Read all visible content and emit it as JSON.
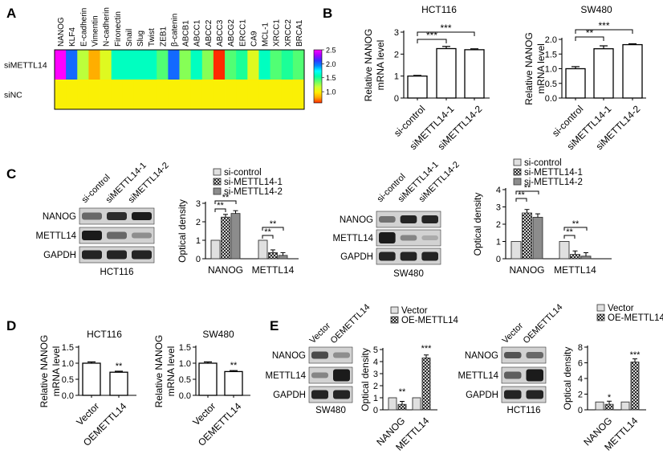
{
  "panel_labels": {
    "a": "A",
    "b": "B",
    "c": "C",
    "d": "D",
    "e": "E"
  },
  "colors": {
    "heat_scale": [
      "#ff2a00",
      "#ffaa00",
      "#ffee00",
      "#ccff33",
      "#66ff66",
      "#00ffaa",
      "#00ffff",
      "#0088ff",
      "#3333ff",
      "#aa00ff",
      "#ff00ff"
    ],
    "bar_white": "#ffffff",
    "bar_light": "#e0e0e0",
    "bar_gray": "#8c8c8c",
    "blot_dark": "#1a1a1a"
  },
  "panel_a": {
    "genes": [
      "NANOG",
      "KLF4",
      "E-cadherin",
      "Vimentin",
      "N-cadherin",
      "Fironectin",
      "Snail",
      "Slug",
      "Twist",
      "ZEB1",
      "β-catenin",
      "ABCB1",
      "ABCC1",
      "ABCC2",
      "ABCC3",
      "ABCG2",
      "ERCC1",
      "CA9",
      "MCL-1",
      "XRCC1",
      "XRCC2",
      "BRCA1"
    ],
    "rows": [
      "siMETTL14",
      "siNC"
    ],
    "colorbar_ticks": [
      "2.5",
      "2.0",
      "1.5",
      "1.0"
    ],
    "chart_data": {
      "type": "heatmap",
      "rows": [
        "siMETTL14",
        "siNC"
      ],
      "columns": [
        "NANOG",
        "KLF4",
        "E-cadherin",
        "Vimentin",
        "N-cadherin",
        "Fironectin",
        "Snail",
        "Slug",
        "Twist",
        "ZEB1",
        "β-catenin",
        "ABCB1",
        "ABCC1",
        "ABCC2",
        "ABCC3",
        "ABCG2",
        "ERCC1",
        "CA9",
        "MCL-1",
        "XRCC1",
        "XRCC2",
        "BRCA1"
      ],
      "values": [
        [
          2.5,
          2.0,
          1.2,
          0.8,
          1.1,
          1.6,
          1.6,
          1.6,
          1.6,
          1.4,
          2.0,
          1.3,
          1.6,
          1.3,
          0.6,
          1.4,
          1.5,
          1.1,
          1.6,
          1.4,
          1.5,
          1.4
        ],
        [
          1.0,
          1.0,
          1.0,
          1.0,
          1.0,
          1.0,
          1.0,
          1.0,
          1.0,
          1.0,
          1.0,
          1.0,
          1.0,
          1.0,
          1.0,
          1.0,
          1.0,
          1.0,
          1.0,
          1.0,
          1.0,
          1.0
        ]
      ],
      "range": [
        0.6,
        2.5
      ]
    }
  },
  "panel_b": {
    "chart_data": [
      {
        "type": "bar",
        "title": "HCT116",
        "ylabel": "Relative NANOG mRNA level",
        "categories": [
          "si-control",
          "siMETTL14-1",
          "siMETTL14-2"
        ],
        "values": [
          1.0,
          2.25,
          2.2
        ],
        "errors": [
          0.03,
          0.1,
          0.04
        ],
        "ylim": [
          0,
          3
        ],
        "yticks": [
          "0",
          "1",
          "2",
          "3"
        ],
        "significance": [
          "***",
          "***"
        ]
      },
      {
        "type": "bar",
        "title": "SW480",
        "ylabel": "Relative NANOG mRNA level",
        "categories": [
          "si-control",
          "siMETTL14-1",
          "siMETTL14-2"
        ],
        "values": [
          1.0,
          1.68,
          1.82
        ],
        "errors": [
          0.07,
          0.1,
          0.03
        ],
        "ylim": [
          0,
          2
        ],
        "yticks": [
          "0.0",
          "0.5",
          "1.0",
          "1.5",
          "2.0"
        ],
        "significance": [
          "**",
          "***"
        ]
      }
    ]
  },
  "panel_c": {
    "blots": [
      {
        "cell_line": "HCT116",
        "lanes": [
          "si-control",
          "siMETTL14-1",
          "siMETTL14-2"
        ],
        "rows": [
          "NANOG",
          "METTL14",
          "GAPDH"
        ]
      },
      {
        "cell_line": "SW480",
        "lanes": [
          "si-control",
          "siMETTL14-1",
          "siMETTL14-2"
        ],
        "rows": [
          "NANOG",
          "METTL14",
          "GAPDH"
        ]
      }
    ],
    "chart_data": [
      {
        "type": "bar",
        "ylabel": "Optical density",
        "categories": [
          "NANOG",
          "METTL14"
        ],
        "series": [
          {
            "name": "si-control",
            "values": [
              1.0,
              1.0
            ]
          },
          {
            "name": "si-METTL14-1",
            "values": [
              2.25,
              0.33
            ]
          },
          {
            "name": "si-METTL14-2",
            "values": [
              2.45,
              0.18
            ]
          }
        ],
        "ylim": [
          0,
          3
        ],
        "yticks": [
          "0",
          "1",
          "2",
          "3"
        ],
        "significance": [
          "**",
          "**",
          "**",
          "**"
        ]
      },
      {
        "type": "bar",
        "ylabel": "Optical density",
        "categories": [
          "NANOG",
          "METTL14"
        ],
        "series": [
          {
            "name": "si-control",
            "values": [
              1.0,
              1.0
            ]
          },
          {
            "name": "si-METTL14-1",
            "values": [
              2.65,
              0.25
            ]
          },
          {
            "name": "si-METTL14-2",
            "values": [
              2.4,
              0.15
            ]
          }
        ],
        "ylim": [
          0,
          4
        ],
        "yticks": [
          "0",
          "1",
          "2",
          "3",
          "4"
        ],
        "significance": [
          "**",
          "**",
          "**",
          "**"
        ]
      }
    ]
  },
  "panel_d": {
    "chart_data": [
      {
        "type": "bar",
        "title": "HCT116",
        "ylabel": "Relative NANOG mRNA level",
        "categories": [
          "Vector",
          "OEMETTL14"
        ],
        "values": [
          1.0,
          0.72
        ],
        "errors": [
          0.04,
          0.03
        ],
        "ylim": [
          0,
          1.5
        ],
        "yticks": [
          "0.0",
          "0.5",
          "1.0",
          "1.5"
        ],
        "significance": [
          "**"
        ]
      },
      {
        "type": "bar",
        "title": "SW480",
        "ylabel": "Relative NANOG mRNA level",
        "categories": [
          "Vector",
          "OEMETTL14"
        ],
        "values": [
          1.0,
          0.74
        ],
        "errors": [
          0.04,
          0.03
        ],
        "ylim": [
          0,
          1.5
        ],
        "yticks": [
          "0.0",
          "0.5",
          "1.0",
          "1.5"
        ],
        "significance": [
          "**"
        ]
      }
    ]
  },
  "panel_e": {
    "blots": [
      {
        "cell_line": "SW480",
        "lanes": [
          "Vector",
          "OEMETTL14"
        ],
        "rows": [
          "NANOG",
          "METTL14",
          "GAPDH"
        ]
      },
      {
        "cell_line": "HCT116",
        "lanes": [
          "Vector",
          "OEMETTL14"
        ],
        "rows": [
          "NANOG",
          "METTL14",
          "GAPDH"
        ]
      }
    ],
    "chart_data": [
      {
        "type": "bar",
        "ylabel": "Optical density",
        "categories": [
          "NANOG",
          "METTL14"
        ],
        "series": [
          {
            "name": "Vector",
            "values": [
              1.0,
              1.0
            ]
          },
          {
            "name": "OE-METTL14",
            "values": [
              0.45,
              4.3
            ]
          }
        ],
        "ylim": [
          0,
          5
        ],
        "yticks": [
          "0",
          "1",
          "2",
          "3",
          "4",
          "5"
        ],
        "significance": [
          "**",
          "***"
        ]
      },
      {
        "type": "bar",
        "ylabel": "Optical density",
        "categories": [
          "NANOG",
          "METTL14"
        ],
        "series": [
          {
            "name": "Vector",
            "values": [
              1.0,
              1.0
            ]
          },
          {
            "name": "OE-METTL14",
            "values": [
              0.7,
              6.1
            ]
          }
        ],
        "ylim": [
          0,
          8
        ],
        "yticks": [
          "0",
          "2",
          "4",
          "6",
          "8"
        ],
        "significance": [
          "*",
          "***"
        ]
      }
    ]
  }
}
